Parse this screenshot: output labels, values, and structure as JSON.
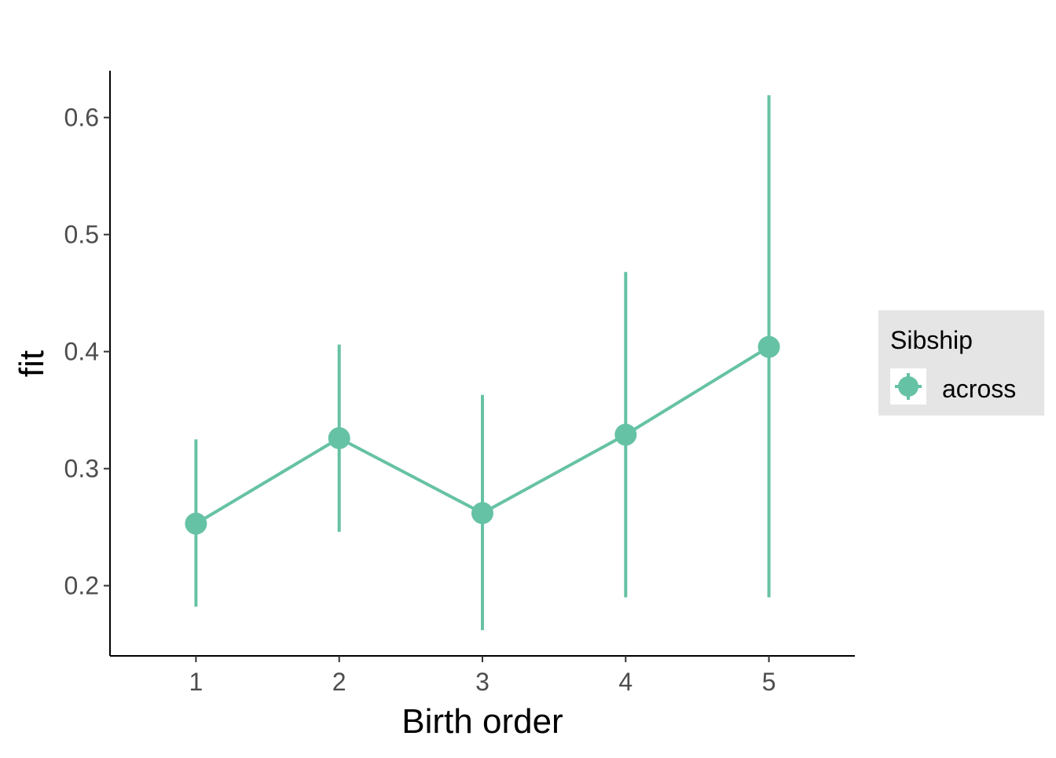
{
  "chart_data": {
    "type": "line",
    "title": "",
    "xlabel": "Birth order",
    "ylabel": "fit",
    "x": [
      1,
      2,
      3,
      4,
      5
    ],
    "x_tick_labels": [
      "1",
      "2",
      "3",
      "4",
      "5"
    ],
    "xlim": [
      0.4,
      5.6
    ],
    "ylim": [
      0.14,
      0.64
    ],
    "y_ticks": [
      0.2,
      0.3,
      0.4,
      0.5,
      0.6
    ],
    "y_tick_labels": [
      "0.2",
      "0.3",
      "0.4",
      "0.5",
      "0.6"
    ],
    "grid": false,
    "legend": {
      "title": "Sibship",
      "position": "right"
    },
    "series": [
      {
        "name": "across",
        "color": "#66c2a5",
        "values": [
          0.253,
          0.326,
          0.262,
          0.329,
          0.404
        ],
        "lower": [
          0.182,
          0.246,
          0.162,
          0.19,
          0.19
        ],
        "upper": [
          0.325,
          0.406,
          0.363,
          0.468,
          0.619
        ]
      }
    ]
  }
}
